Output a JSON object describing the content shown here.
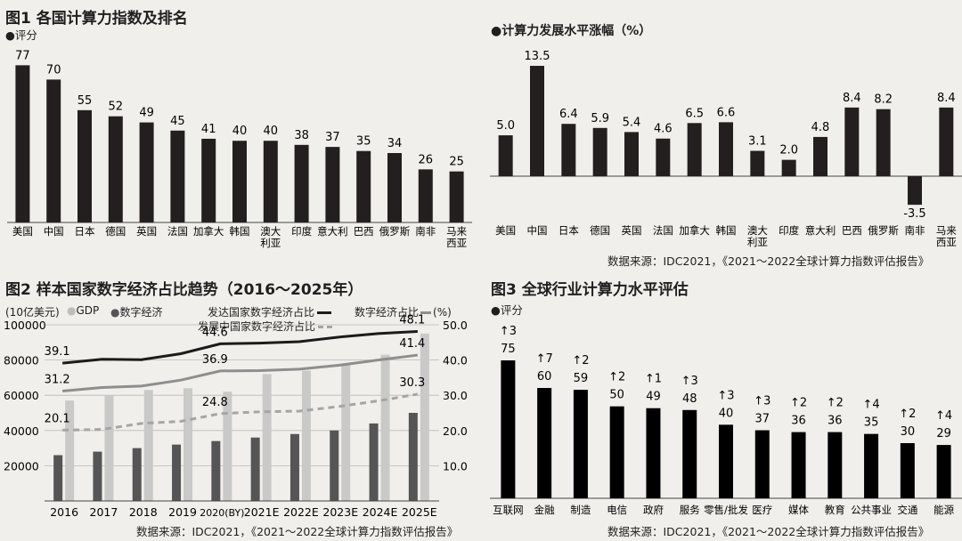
{
  "figure1": {
    "title": "图1 各国计算力指数及排名",
    "subtitle": "●评分",
    "chart_data": {
      "type": "bar",
      "title": "图1 各国计算力指数及排名",
      "ylabel": "评分",
      "categories": [
        "美国",
        "中国",
        "日本",
        "德国",
        "英国",
        "法国",
        "加拿大",
        "韩国",
        "澳大利亚",
        "印度",
        "意大利",
        "巴西",
        "俄罗斯",
        "南非",
        "马来西亚"
      ],
      "category_lines": [
        [
          "美国"
        ],
        [
          "中国"
        ],
        [
          "日本"
        ],
        [
          "德国"
        ],
        [
          "英国"
        ],
        [
          "法国"
        ],
        [
          "加拿大"
        ],
        [
          "韩国"
        ],
        [
          "澳大",
          "利亚"
        ],
        [
          "印度"
        ],
        [
          "意大利"
        ],
        [
          "巴西"
        ],
        [
          "俄罗斯"
        ],
        [
          "南非"
        ],
        [
          "马来",
          "西亚"
        ]
      ],
      "values": [
        77,
        70,
        55,
        52,
        49,
        45,
        41,
        40,
        40,
        38,
        37,
        35,
        34,
        26,
        25
      ],
      "ylim": [
        0,
        85
      ]
    }
  },
  "figure_growth": {
    "title": "●计算力发展水平涨幅（%）",
    "source": "数据来源：IDC2021，《2021～2022全球计算力指数评估报告》",
    "chart_data": {
      "type": "bar",
      "title": "计算力发展水平涨幅（%）",
      "categories": [
        "美国",
        "中国",
        "日本",
        "德国",
        "英国",
        "法国",
        "加拿大",
        "韩国",
        "澳大利亚",
        "印度",
        "意大利",
        "巴西",
        "俄罗斯",
        "南非",
        "马来西亚"
      ],
      "category_lines": [
        [
          "美国"
        ],
        [
          "中国"
        ],
        [
          "日本"
        ],
        [
          "德国"
        ],
        [
          "英国"
        ],
        [
          "法国"
        ],
        [
          "加拿大"
        ],
        [
          "韩国"
        ],
        [
          "澳大",
          "利亚"
        ],
        [
          "印度"
        ],
        [
          "意大利"
        ],
        [
          "巴西"
        ],
        [
          "俄罗斯"
        ],
        [
          "南非"
        ],
        [
          "马来",
          "西亚"
        ]
      ],
      "values": [
        5.0,
        13.5,
        6.4,
        5.9,
        5.4,
        4.6,
        6.5,
        6.6,
        3.1,
        2.0,
        4.8,
        8.4,
        8.2,
        -3.5,
        8.4
      ],
      "labels": [
        "5.0",
        "13.5",
        "6.4",
        "5.9",
        "5.4",
        "4.6",
        "6.5",
        "6.6",
        "3.1",
        "2.0",
        "4.8",
        "8.4",
        "8.2",
        "-3.5",
        "8.4"
      ],
      "ylim": [
        -4,
        14
      ]
    }
  },
  "figure2": {
    "title": "图2 样本国家数字经济占比趋势（2016～2025年）",
    "legend": {
      "unit_left": "(10亿美元)",
      "gdp": "GDP",
      "digital": "数字经济",
      "developed": "发达国家数字经济占比",
      "developing": "发展中国家数字经济占比",
      "share": "数字经济占比",
      "unit_right": "(%)"
    },
    "source": "数据来源：IDC2021，《2021～2022全球计算力指数评估报告》",
    "chart_data": {
      "type": "bar+line",
      "categories": [
        "2016",
        "2017",
        "2018",
        "2019",
        "2020(BY)",
        "2021E",
        "2022E",
        "2023E",
        "2024E",
        "2025E"
      ],
      "y_left_ticks": [
        "100000",
        "80000",
        "60000",
        "40000",
        "20000"
      ],
      "y_left_lim": [
        0,
        100000
      ],
      "y_right_ticks": [
        "50.0",
        "40.0",
        "30.0",
        "20.0",
        "10.0"
      ],
      "y_right_lim": [
        0,
        50
      ],
      "series": [
        {
          "name": "GDP",
          "axis": "left",
          "values": [
            57000,
            60000,
            63000,
            64000,
            62000,
            72000,
            74000,
            78000,
            83000,
            95000
          ]
        },
        {
          "name": "数字经济",
          "axis": "left",
          "values": [
            26000,
            28000,
            30000,
            32000,
            34000,
            36000,
            38000,
            40000,
            44000,
            50000
          ]
        },
        {
          "name": "发达国家数字经济占比",
          "axis": "right",
          "values": [
            39.1,
            40.2,
            40.1,
            41.8,
            44.6,
            44.8,
            45.2,
            46.5,
            47.5,
            48.1
          ]
        },
        {
          "name": "数字经济占比",
          "axis": "right",
          "values": [
            31.2,
            32.2,
            32.6,
            34.3,
            36.9,
            37.0,
            37.4,
            38.5,
            40.0,
            41.4
          ]
        },
        {
          "name": "发展中国家数字经济占比",
          "axis": "right",
          "values": [
            20.1,
            20.3,
            22.0,
            22.6,
            24.8,
            25.3,
            25.5,
            26.8,
            28.4,
            30.3
          ]
        }
      ],
      "line_labels": [
        {
          "series": "发达国家数字经济占比",
          "points": [
            {
              "index": 0,
              "text": "39.1"
            },
            {
              "index": 4,
              "text": "44.6"
            },
            {
              "index": 9,
              "text": "48.1"
            }
          ]
        },
        {
          "series": "数字经济占比",
          "points": [
            {
              "index": 0,
              "text": "31.2"
            },
            {
              "index": 4,
              "text": "36.9"
            },
            {
              "index": 9,
              "text": "41.4"
            }
          ]
        },
        {
          "series": "发展中国家数字经济占比",
          "points": [
            {
              "index": 0,
              "text": "20.1"
            },
            {
              "index": 4,
              "text": "24.8"
            },
            {
              "index": 9,
              "text": "30.3"
            }
          ]
        }
      ]
    }
  },
  "figure3": {
    "title": "图3 全球行业计算力水平评估",
    "subtitle": "●评分",
    "source": "数据来源：IDC2021，《2021～2022全球计算力指数评估报告》",
    "chart_data": {
      "type": "bar",
      "title": "全球行业计算力水平评估",
      "ylabel": "评分",
      "categories": [
        "互联网",
        "金融",
        "制造",
        "电信",
        "政府",
        "服务",
        "零售/批发",
        "医疗",
        "媒体",
        "教育",
        "公共事业",
        "交通",
        "能源"
      ],
      "values": [
        75,
        60,
        59,
        50,
        49,
        48,
        40,
        37,
        36,
        36,
        35,
        30,
        29
      ],
      "rank_change": [
        "↑3",
        "↑7",
        "↑2",
        "↑2",
        "↑1",
        "↑3",
        "↑3",
        "↑3",
        "↑2",
        "↑2",
        "↑4",
        "↑2",
        "↑4"
      ],
      "ylim": [
        0,
        80
      ]
    }
  },
  "colors": {
    "bar": "#231f1f",
    "bar_black": "#000000",
    "gdp": "#c9c9c7",
    "digital": "#555555",
    "line_dev": "#1b1b1b",
    "line_share": "#8e8e8e",
    "line_developing": "#a5a5a5",
    "grid": "#b9b9b9",
    "axis": "#444444"
  }
}
